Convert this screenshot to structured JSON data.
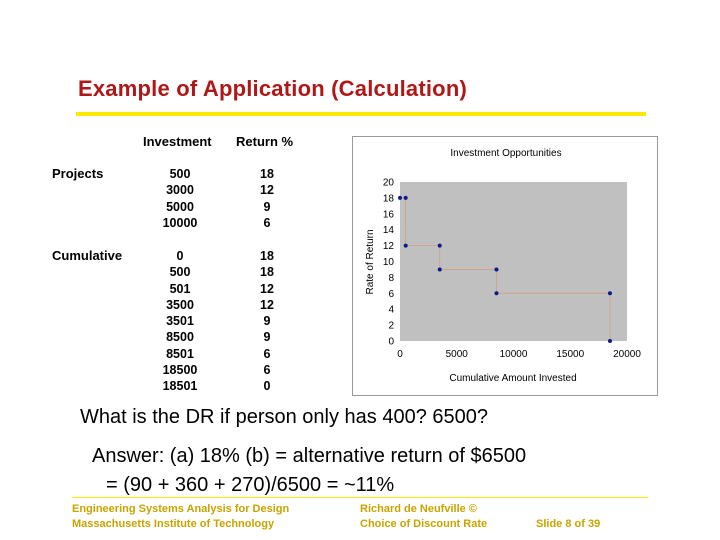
{
  "slide": {
    "title": "Example of Application (Calculation)"
  },
  "table": {
    "headers": [
      "Investment",
      "Return %"
    ],
    "projects_label": "Projects",
    "cumulative_label": "Cumulative",
    "projects": {
      "investment": [
        "500",
        "3000",
        "5000",
        "10000"
      ],
      "return": [
        "18",
        "12",
        "9",
        "6"
      ]
    },
    "cumulative": {
      "investment": [
        "0",
        "500",
        "501",
        "3500",
        "3501",
        "8500",
        "8501",
        "18500",
        "18501"
      ],
      "return": [
        "18",
        "18",
        "12",
        "12",
        "9",
        "9",
        "6",
        "6",
        "0"
      ]
    }
  },
  "chart_data": {
    "type": "scatter",
    "title": "Investment Opportunities",
    "xlabel": "Cumulative Amount Invested",
    "ylabel": "Rate of Return",
    "xlim": [
      0,
      20000
    ],
    "ylim": [
      0,
      20
    ],
    "xticks": [
      "0",
      "5000",
      "10000",
      "15000",
      "20000"
    ],
    "yticks": [
      "0",
      "2",
      "4",
      "6",
      "8",
      "10",
      "12",
      "14",
      "16",
      "18",
      "20"
    ],
    "grid": false,
    "legend": "none",
    "points": [
      {
        "x": 0,
        "y": 18
      },
      {
        "x": 500,
        "y": 18
      },
      {
        "x": 501,
        "y": 12
      },
      {
        "x": 3500,
        "y": 12
      },
      {
        "x": 3501,
        "y": 9
      },
      {
        "x": 8500,
        "y": 9
      },
      {
        "x": 8501,
        "y": 6
      },
      {
        "x": 18500,
        "y": 6
      },
      {
        "x": 18501,
        "y": 0
      }
    ],
    "colors": {
      "plot_bg": "#c0c0c0",
      "frame_bg": "#ffffff",
      "marker": "#0a1a8c",
      "step_line": "#d0a080"
    }
  },
  "body_text": {
    "question": "What is the DR if person only has  400?    6500?",
    "answer_line1": "Answer: (a) 18%  (b) = alternative return of $6500",
    "answer_line2": "= (90 + 360 + 270)/6500 = ~11%"
  },
  "footer": {
    "left_line1": "Engineering Systems Analysis for Design",
    "left_line2": "Massachusetts Institute of Technology",
    "center_line1": "Richard de Neufville  ©",
    "center_line2": "Choice of Discount Rate",
    "right": "Slide 8 of 39"
  }
}
